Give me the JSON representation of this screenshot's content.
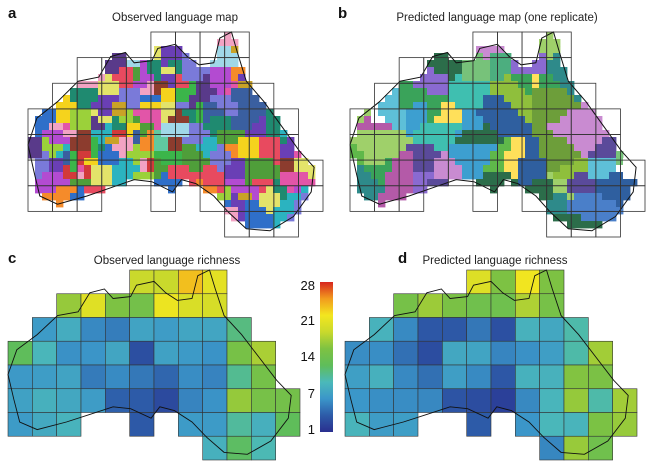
{
  "panels": [
    {
      "letter": "a",
      "title": "Observed language map"
    },
    {
      "letter": "b",
      "title": "Predicted language map (one replicate)"
    },
    {
      "letter": "c",
      "title": "Observed language richness"
    },
    {
      "letter": "d",
      "title": "Predicted language richness"
    }
  ],
  "colorbar": {
    "ticks": [
      "28",
      "21",
      "14",
      "7",
      "1"
    ],
    "min": 1,
    "max": 28,
    "stops": [
      "#2a2f8f",
      "#2d5ba8",
      "#3b96c9",
      "#4bb9b9",
      "#5fbd5a",
      "#7ec242",
      "#c9d92c",
      "#f3e61f",
      "#f29b1e",
      "#d7261f"
    ]
  },
  "map": {
    "border_color": "#111111",
    "grid_color": "#333333",
    "land_color": "#2c7a5a"
  }
}
